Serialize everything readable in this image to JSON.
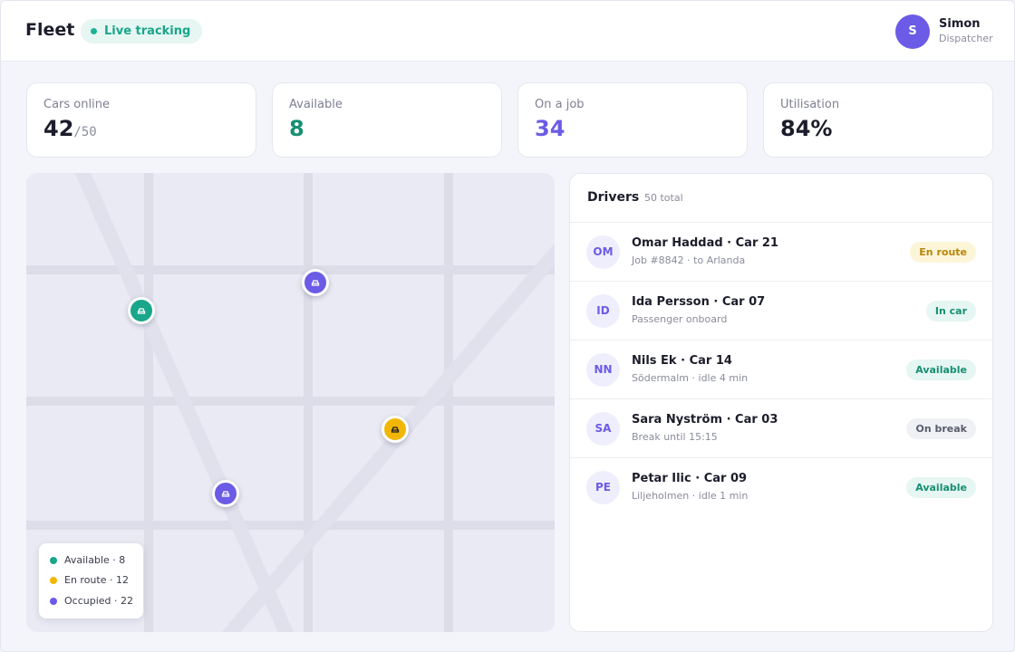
{
  "header": {
    "brand": "Fleet",
    "live_label": "Live tracking",
    "user": {
      "initial": "S",
      "name": "Simon",
      "role": "Dispatcher"
    }
  },
  "stats": [
    {
      "label": "Cars online",
      "value": "42",
      "sub": "/50"
    },
    {
      "label": "Available",
      "value": "8"
    },
    {
      "label": "On a job",
      "value": "34"
    },
    {
      "label": "Utilisation",
      "value": "84%"
    }
  ],
  "map": {
    "pins": [
      {
        "status": "available",
        "color": "#1aa68a",
        "icon": "car-icon"
      },
      {
        "status": "occupied",
        "color": "#6b5be6",
        "icon": "car-icon"
      },
      {
        "status": "en-route",
        "color": "#f2b705",
        "icon": "car-icon"
      },
      {
        "status": "occupied",
        "color": "#6b5be6",
        "icon": "car-icon"
      }
    ],
    "legend": [
      {
        "label": "Available · 8",
        "color": "#1aa68a"
      },
      {
        "label": "En route · 12",
        "color": "#f2b705"
      },
      {
        "label": "Occupied · 22",
        "color": "#6b5be6"
      }
    ]
  },
  "drivers": {
    "title": "Drivers",
    "count": "50 total",
    "rows": [
      {
        "initials": "OM",
        "title": "Omar Haddad · Car 21",
        "sub": "Job #8842 · to Arlanda",
        "status": "En route"
      },
      {
        "initials": "ID",
        "title": "Ida Persson · Car 07",
        "sub": "Passenger onboard",
        "status": "In car"
      },
      {
        "initials": "NN",
        "title": "Nils Ek · Car 14",
        "sub": "Södermalm · idle 4 min",
        "status": "Available"
      },
      {
        "initials": "SA",
        "title": "Sara Nyström · Car 03",
        "sub": "Break until 15:15",
        "status": "On break"
      },
      {
        "initials": "PE",
        "title": "Petar Ilic · Car 09",
        "sub": "Liljeholmen · idle 1 min",
        "status": "Available"
      }
    ]
  }
}
